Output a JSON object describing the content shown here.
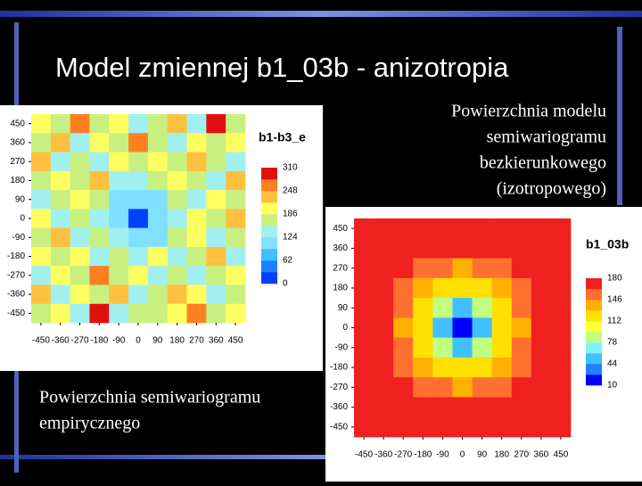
{
  "title": "Model zmiennej b1_03b - anizotropia",
  "caption_left": [
    "Powierzchnia semiwariogramu",
    "empirycznego"
  ],
  "caption_right": [
    "Powierzchnia modelu",
    "semiwariogramu",
    "bezkierunkowego",
    "(izotropowego)"
  ],
  "chart_data": [
    {
      "type": "heatmap",
      "title": "b1-b3_e",
      "x": [
        -450,
        -360,
        -270,
        -180,
        -90,
        0,
        90,
        180,
        270,
        360,
        450
      ],
      "y": [
        450,
        360,
        270,
        180,
        90,
        0,
        -90,
        -180,
        -270,
        -360,
        -450
      ],
      "xlim": [
        -495,
        495
      ],
      "ylim": [
        -495,
        495
      ],
      "xticks": [
        -450,
        -360,
        -270,
        -180,
        -90,
        0,
        90,
        180,
        270,
        360,
        450
      ],
      "yticks": [
        -450,
        -360,
        -270,
        -180,
        -90,
        0,
        90,
        180,
        270,
        360,
        450
      ],
      "clim": [
        0,
        310
      ],
      "colorbar_ticks": [
        0,
        62,
        124,
        186,
        248,
        310
      ],
      "colormap": [
        "#0040ff",
        "#2080ff",
        "#40c0ff",
        "#80e0ff",
        "#a0f0f0",
        "#c8f080",
        "#ffff60",
        "#ffc040",
        "#ff8020",
        "#e01010"
      ],
      "values": [
        [
          190,
          170,
          250,
          160,
          200,
          150,
          180,
          220,
          130,
          310,
          170
        ],
        [
          160,
          220,
          140,
          190,
          170,
          250,
          160,
          140,
          200,
          160,
          190
        ],
        [
          230,
          150,
          180,
          130,
          210,
          170,
          190,
          160,
          240,
          180,
          150
        ],
        [
          170,
          200,
          160,
          240,
          150,
          130,
          160,
          210,
          170,
          140,
          220
        ],
        [
          140,
          180,
          210,
          160,
          120,
          100,
          120,
          180,
          150,
          200,
          170
        ],
        [
          200,
          150,
          170,
          130,
          100,
          20,
          100,
          140,
          190,
          160,
          230
        ],
        [
          160,
          230,
          140,
          180,
          130,
          100,
          120,
          170,
          210,
          150,
          180
        ],
        [
          190,
          160,
          200,
          150,
          170,
          140,
          190,
          130,
          160,
          240,
          140
        ],
        [
          150,
          210,
          170,
          250,
          160,
          200,
          150,
          180,
          140,
          170,
          200
        ],
        [
          220,
          140,
          190,
          160,
          230,
          150,
          170,
          220,
          190,
          130,
          160
        ],
        [
          170,
          190,
          150,
          310,
          140,
          180,
          160,
          200,
          250,
          170,
          190
        ]
      ]
    },
    {
      "type": "heatmap",
      "title": "b1_03b",
      "x": [
        -450,
        -360,
        -270,
        -180,
        -90,
        0,
        90,
        180,
        270,
        360,
        450
      ],
      "y": [
        450,
        360,
        270,
        180,
        90,
        0,
        -90,
        -180,
        -270,
        -360,
        -450
      ],
      "xlim": [
        -495,
        495
      ],
      "ylim": [
        -495,
        495
      ],
      "xticks": [
        -450,
        -360,
        -270,
        -180,
        -90,
        0,
        90,
        180,
        270,
        360,
        450
      ],
      "yticks": [
        -450,
        -360,
        -270,
        -180,
        -90,
        0,
        90,
        180,
        270,
        360,
        450
      ],
      "clim": [
        10,
        180
      ],
      "colorbar_ticks": [
        10,
        44,
        78,
        112,
        146,
        180
      ],
      "colormap": [
        "#0000ff",
        "#2080ff",
        "#40c0ff",
        "#80f0ff",
        "#c0ff80",
        "#ffff40",
        "#ffe000",
        "#ffb000",
        "#ff7030",
        "#f02020"
      ],
      "values": [
        [
          180,
          180,
          180,
          180,
          180,
          180,
          180,
          180,
          180,
          180,
          180
        ],
        [
          180,
          180,
          180,
          172,
          168,
          165,
          168,
          172,
          180,
          180,
          180
        ],
        [
          180,
          180,
          170,
          158,
          150,
          145,
          150,
          158,
          170,
          180,
          180
        ],
        [
          180,
          172,
          158,
          140,
          125,
          115,
          125,
          140,
          158,
          172,
          180
        ],
        [
          180,
          168,
          150,
          125,
          90,
          60,
          90,
          125,
          150,
          168,
          180
        ],
        [
          180,
          165,
          145,
          115,
          60,
          10,
          60,
          115,
          145,
          165,
          180
        ],
        [
          180,
          168,
          150,
          125,
          90,
          60,
          90,
          125,
          150,
          168,
          180
        ],
        [
          180,
          172,
          158,
          140,
          125,
          115,
          125,
          140,
          158,
          172,
          180
        ],
        [
          180,
          180,
          170,
          158,
          150,
          145,
          150,
          158,
          170,
          180,
          180
        ],
        [
          180,
          180,
          180,
          172,
          168,
          165,
          168,
          172,
          180,
          180,
          180
        ],
        [
          180,
          180,
          180,
          180,
          180,
          180,
          180,
          180,
          180,
          180,
          180
        ]
      ]
    }
  ]
}
